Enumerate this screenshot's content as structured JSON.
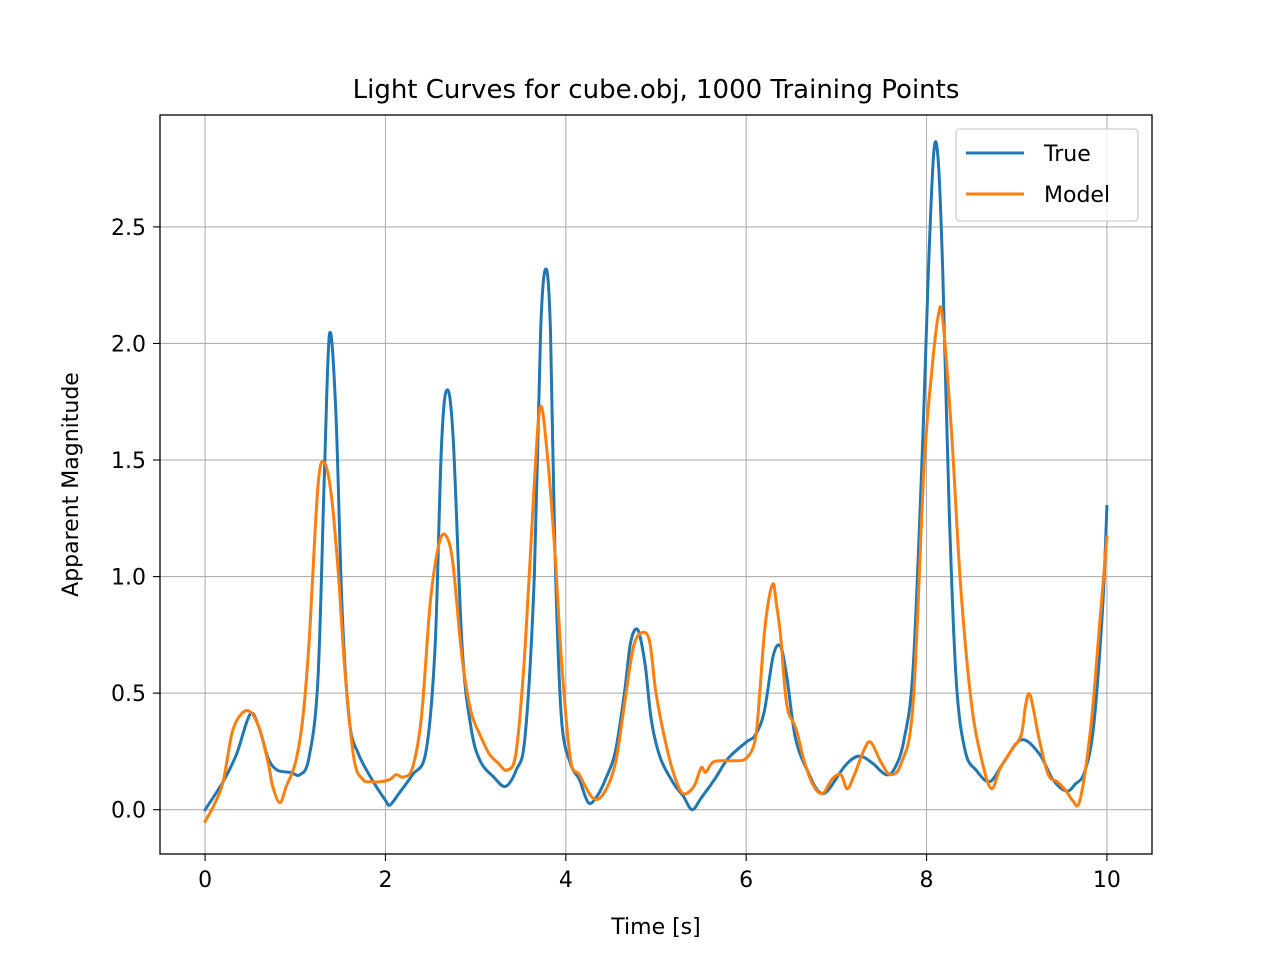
{
  "chart_data": {
    "type": "line",
    "title": "Light Curves for cube.obj, 1000 Training Points",
    "xlabel": "Time [s]",
    "ylabel": "Apparent Magnitude",
    "xlim": [
      -0.5,
      10.5
    ],
    "ylim": [
      -0.19,
      2.98
    ],
    "xticks": [
      0,
      2,
      4,
      6,
      8,
      10
    ],
    "yticks": [
      0.0,
      0.5,
      1.0,
      1.5,
      2.0,
      2.5
    ],
    "xtick_labels": [
      "0",
      "2",
      "4",
      "6",
      "8",
      "10"
    ],
    "ytick_labels": [
      "0.0",
      "0.5",
      "1.0",
      "1.5",
      "2.0",
      "2.5"
    ],
    "grid": true,
    "legend_position": "top-right",
    "series": [
      {
        "name": "True",
        "color": "#1f77b4",
        "x": [
          0,
          0.2,
          0.35,
          0.5,
          0.6,
          0.7,
          0.8,
          0.95,
          1.05,
          1.15,
          1.25,
          1.32,
          1.38,
          1.45,
          1.52,
          1.6,
          1.7,
          1.85,
          2.0,
          2.05,
          2.15,
          2.3,
          2.45,
          2.55,
          2.62,
          2.68,
          2.75,
          2.85,
          2.95,
          3.05,
          3.2,
          3.33,
          3.45,
          3.55,
          3.65,
          3.72,
          3.78,
          3.83,
          3.88,
          3.95,
          4.05,
          4.15,
          4.25,
          4.35,
          4.45,
          4.55,
          4.65,
          4.72,
          4.8,
          4.88,
          4.95,
          5.05,
          5.2,
          5.3,
          5.4,
          5.5,
          5.65,
          5.8,
          6.0,
          6.1,
          6.2,
          6.3,
          6.38,
          6.45,
          6.55,
          6.7,
          6.8,
          6.9,
          7.1,
          7.25,
          7.4,
          7.55,
          7.65,
          7.75,
          7.85,
          7.95,
          8.02,
          8.08,
          8.13,
          8.18,
          8.25,
          8.33,
          8.43,
          8.55,
          8.7,
          8.85,
          9.05,
          9.25,
          9.4,
          9.55,
          9.65,
          9.75,
          9.85,
          9.95,
          10.0
        ],
        "y": [
          0.0,
          0.12,
          0.24,
          0.41,
          0.35,
          0.22,
          0.17,
          0.16,
          0.15,
          0.22,
          0.55,
          1.4,
          2.04,
          1.7,
          0.85,
          0.38,
          0.24,
          0.13,
          0.04,
          0.02,
          0.07,
          0.15,
          0.25,
          0.7,
          1.55,
          1.8,
          1.6,
          0.7,
          0.35,
          0.21,
          0.14,
          0.1,
          0.17,
          0.32,
          1.0,
          2.05,
          2.32,
          2.05,
          1.1,
          0.4,
          0.2,
          0.13,
          0.03,
          0.06,
          0.14,
          0.25,
          0.5,
          0.72,
          0.77,
          0.62,
          0.38,
          0.22,
          0.11,
          0.06,
          0.0,
          0.05,
          0.13,
          0.22,
          0.29,
          0.32,
          0.42,
          0.66,
          0.7,
          0.57,
          0.3,
          0.15,
          0.08,
          0.08,
          0.19,
          0.23,
          0.2,
          0.15,
          0.18,
          0.3,
          0.6,
          1.5,
          2.3,
          2.82,
          2.78,
          2.3,
          1.3,
          0.55,
          0.25,
          0.17,
          0.12,
          0.2,
          0.3,
          0.24,
          0.13,
          0.08,
          0.11,
          0.16,
          0.35,
          0.85,
          1.3
        ]
      },
      {
        "name": "Model",
        "color": "#ff7f0e",
        "x": [
          0,
          0.1,
          0.2,
          0.3,
          0.4,
          0.5,
          0.6,
          0.7,
          0.75,
          0.83,
          0.9,
          1.0,
          1.08,
          1.15,
          1.25,
          1.32,
          1.4,
          1.48,
          1.55,
          1.65,
          1.75,
          1.85,
          1.95,
          2.05,
          2.12,
          2.2,
          2.3,
          2.4,
          2.5,
          2.6,
          2.68,
          2.75,
          2.85,
          2.95,
          3.05,
          3.15,
          3.25,
          3.35,
          3.45,
          3.55,
          3.65,
          3.72,
          3.8,
          3.88,
          3.95,
          4.05,
          4.15,
          4.3,
          4.42,
          4.55,
          4.65,
          4.75,
          4.85,
          4.93,
          5.0,
          5.1,
          5.2,
          5.3,
          5.42,
          5.5,
          5.55,
          5.62,
          5.7,
          5.85,
          6.0,
          6.1,
          6.15,
          6.2,
          6.25,
          6.3,
          6.33,
          6.38,
          6.45,
          6.55,
          6.65,
          6.75,
          6.85,
          6.95,
          7.05,
          7.12,
          7.2,
          7.3,
          7.38,
          7.5,
          7.6,
          7.72,
          7.85,
          7.97,
          8.05,
          8.13,
          8.18,
          8.28,
          8.38,
          8.5,
          8.62,
          8.72,
          8.82,
          8.95,
          9.05,
          9.1,
          9.15,
          9.25,
          9.35,
          9.45,
          9.55,
          9.62,
          9.7,
          9.82,
          9.92,
          10.0
        ],
        "y": [
          -0.05,
          0.02,
          0.12,
          0.33,
          0.41,
          0.42,
          0.35,
          0.2,
          0.1,
          0.03,
          0.1,
          0.2,
          0.38,
          0.7,
          1.38,
          1.49,
          1.35,
          1.0,
          0.6,
          0.22,
          0.13,
          0.12,
          0.12,
          0.13,
          0.15,
          0.14,
          0.18,
          0.4,
          0.9,
          1.15,
          1.17,
          1.05,
          0.65,
          0.42,
          0.32,
          0.24,
          0.2,
          0.17,
          0.25,
          0.7,
          1.4,
          1.73,
          1.5,
          1.1,
          0.65,
          0.22,
          0.15,
          0.05,
          0.07,
          0.2,
          0.45,
          0.7,
          0.76,
          0.72,
          0.5,
          0.3,
          0.15,
          0.07,
          0.1,
          0.18,
          0.16,
          0.2,
          0.21,
          0.21,
          0.22,
          0.3,
          0.5,
          0.75,
          0.9,
          0.97,
          0.9,
          0.75,
          0.45,
          0.35,
          0.2,
          0.1,
          0.07,
          0.13,
          0.15,
          0.09,
          0.15,
          0.25,
          0.29,
          0.2,
          0.15,
          0.2,
          0.45,
          1.45,
          1.85,
          2.12,
          2.1,
          1.6,
          0.95,
          0.45,
          0.2,
          0.09,
          0.18,
          0.26,
          0.32,
          0.45,
          0.49,
          0.3,
          0.15,
          0.12,
          0.08,
          0.04,
          0.04,
          0.35,
          0.8,
          1.17
        ]
      }
    ]
  }
}
